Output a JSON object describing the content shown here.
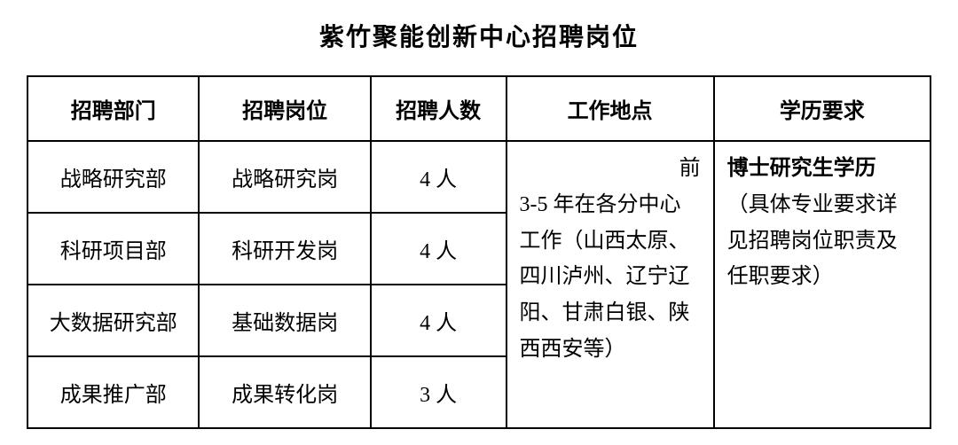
{
  "title": "紫竹聚能创新中心招聘岗位",
  "columns": {
    "dept": "招聘部门",
    "position": "招聘岗位",
    "count": "招聘人数",
    "location": "工作地点",
    "education": "学历要求"
  },
  "rows": [
    {
      "dept": "战略研究部",
      "position": "战略研究岗",
      "count": "4 人"
    },
    {
      "dept": "科研项目部",
      "position": "科研开发岗",
      "count": "4 人"
    },
    {
      "dept": "大数据研究部",
      "position": "基础数据岗",
      "count": "4 人"
    },
    {
      "dept": "成果推广部",
      "position": "成果转化岗",
      "count": "3 人"
    }
  ],
  "location_text": {
    "prefix": "前",
    "body": "3-5 年在各分中心工作（山西太原、四川泸州、辽宁辽阳、甘肃白银、陕西西安等）"
  },
  "education_text": {
    "bold": "博士研究生学历",
    "rest": "（具体专业要求详见招聘岗位职责及任职要求）"
  },
  "styling": {
    "title_fontsize": 28,
    "cell_fontsize": 24,
    "border_color": "#000000",
    "border_width": 2,
    "background_color": "#ffffff",
    "text_color": "#000000",
    "title_font": "SimHei",
    "body_font": "SimSun"
  }
}
